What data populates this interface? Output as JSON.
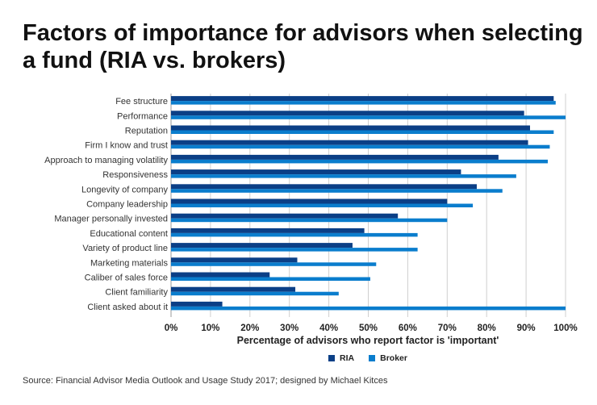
{
  "title": "Factors of importance for advisors when selecting a fund (RIA vs. brokers)",
  "source": "Source: Financial Advisor Media Outlook and Usage Study 2017; designed by Michael Kitces",
  "chart_data": {
    "type": "bar",
    "orientation": "horizontal",
    "title": "Factors of importance for advisors when selecting a fund (RIA vs. brokers)",
    "xlabel": "Percentage of advisors who report factor is 'important'",
    "ylabel": "",
    "xlim": [
      0,
      100
    ],
    "grid": true,
    "legend_placement": "bottom",
    "x_ticks": [
      "0%",
      "10%",
      "20%",
      "30%",
      "40%",
      "50%",
      "60%",
      "70%",
      "80%",
      "90%",
      "100%"
    ],
    "categories": [
      "Fee structure",
      "Performance",
      "Reputation",
      "Firm I know and trust",
      "Approach to managing volatility",
      "Responsiveness",
      "Longevity of company",
      "Company leadership",
      "Manager personally invested",
      "Educational content",
      "Variety of product line",
      "Marketing materials",
      "Caliber of sales force",
      "Client familiarity",
      "Client asked about it"
    ],
    "series": [
      {
        "name": "RIA",
        "color": "#0b3f86",
        "values": [
          97,
          89.5,
          91,
          90.5,
          83,
          73.5,
          77.5,
          70,
          57.5,
          49,
          46,
          32,
          25,
          31.5,
          13
        ]
      },
      {
        "name": "Broker",
        "color": "#0a7dcd",
        "values": [
          97.5,
          100,
          97,
          96,
          95.5,
          87.5,
          84,
          76.5,
          70,
          62.5,
          62.5,
          52,
          50.5,
          42.5,
          100
        ]
      }
    ]
  }
}
